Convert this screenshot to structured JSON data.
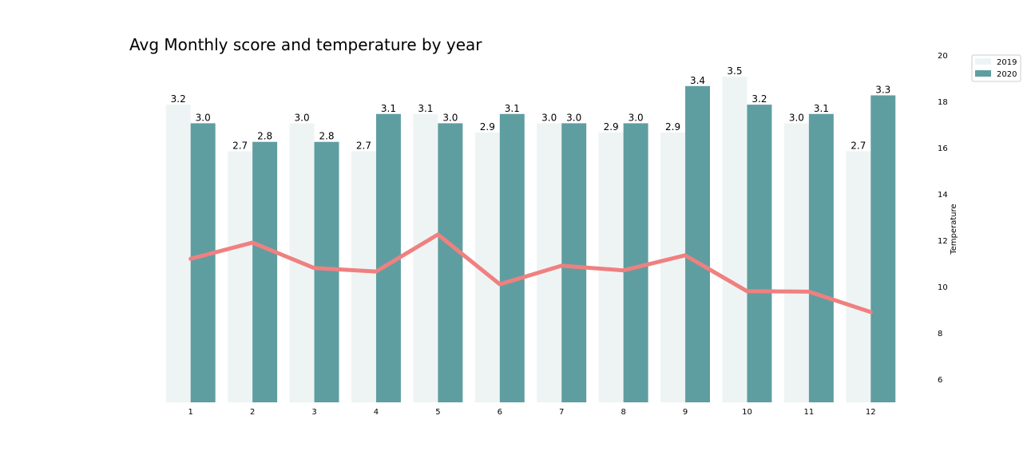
{
  "chart_data": {
    "type": "bar",
    "title": "Avg Monthly score and temperature by year",
    "categories": [
      "1",
      "2",
      "3",
      "4",
      "5",
      "6",
      "7",
      "8",
      "9",
      "10",
      "11",
      "12"
    ],
    "series": [
      {
        "name": "2019",
        "kind": "bar",
        "color": "#eef4f4",
        "values": [
          3.2,
          2.7,
          3.0,
          2.7,
          3.1,
          2.9,
          3.0,
          2.9,
          2.9,
          3.5,
          3.0,
          2.7
        ],
        "labels": [
          "3.2",
          "2.7",
          "3.0",
          "2.7",
          "3.1",
          "2.9",
          "3.0",
          "2.9",
          "2.9",
          "3.5",
          "3.0",
          "2.7"
        ]
      },
      {
        "name": "2020",
        "kind": "bar",
        "color": "#5f9ea0",
        "values": [
          3.0,
          2.8,
          2.8,
          3.1,
          3.0,
          3.1,
          3.0,
          3.0,
          3.4,
          3.2,
          3.1,
          3.3
        ],
        "labels": [
          "3.0",
          "2.8",
          "2.8",
          "3.1",
          "3.0",
          "3.1",
          "3.0",
          "3.0",
          "3.4",
          "3.2",
          "3.1",
          "3.3"
        ]
      },
      {
        "kind": "line",
        "axis": "right",
        "color": "#f08080",
        "values": [
          11.2,
          11.9,
          10.8,
          10.65,
          12.25,
          10.1,
          10.9,
          10.7,
          11.35,
          9.8,
          9.78,
          8.9
        ]
      }
    ],
    "ylim_left": [
      0,
      3.6
    ],
    "ylim_right": [
      5,
      20
    ],
    "yticks_right": [
      "6",
      "8",
      "10",
      "12",
      "14",
      "16",
      "18",
      "20"
    ],
    "ylabel": "",
    "ylabel_right": "Temperature",
    "xlabel": "",
    "grid": false,
    "legend": {
      "placement": "top-right",
      "entries": [
        "2019",
        "2020"
      ]
    }
  }
}
